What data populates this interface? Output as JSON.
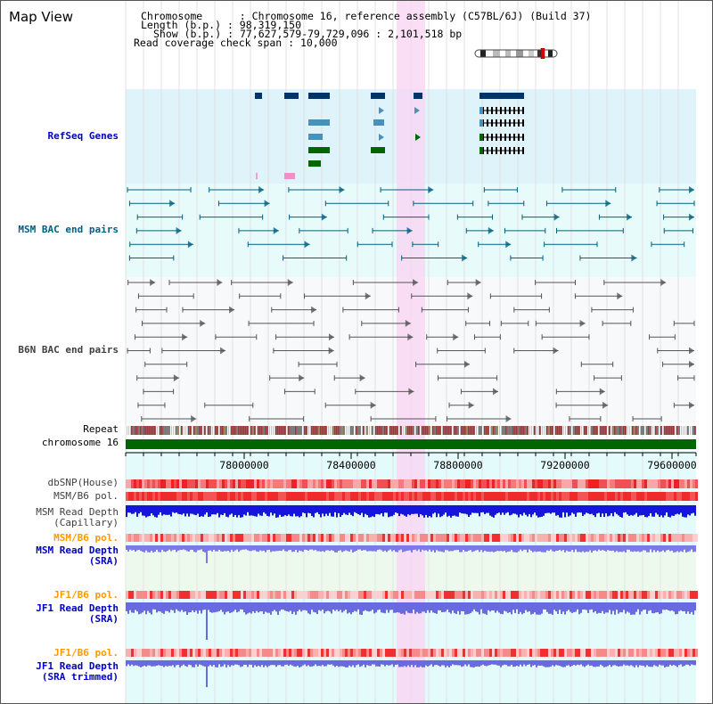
{
  "title": "Map View",
  "header": {
    "line1_label": "Chromosome",
    "line1_value": "Chromosome 16, reference assembly (C57BL/6J) (Build 37)",
    "line2_label": "Length (b.p.)",
    "line2_value": "98,319,150",
    "line3_label": "Show (b.p.)",
    "line3_value": "77,627,579-79,729,096 : 2,101,518 bp",
    "line4_label": "Read coverage check span",
    "line4_value": "10,000"
  },
  "tracks": {
    "refseq": "RefSeq Genes",
    "msm_bac": "MSM BAC end pairs",
    "b6n_bac": "B6N BAC end pairs",
    "repeat": "Repeat",
    "chromosome": "chromosome 16",
    "dbsnp": "dbSNP(House)",
    "msm_b6_pol": "MSM/B6 pol.",
    "msm_depth_cap_1": "MSM Read Depth",
    "msm_depth_cap_2": "(Capillary)",
    "msm_b6_pol_sra": "MSM/B6 pol.",
    "msm_depth_sra_1": "MSM Read Depth",
    "msm_depth_sra_2": "(SRA)",
    "jf1_b6_pol": "JF1/B6 pol.",
    "jf1_depth_1": "JF1 Read Depth",
    "jf1_depth_2": "(SRA)",
    "jf1_b6_pol_trim": "JF1/B6 pol.",
    "jf1_depth_trim_1": "JF1 Read Depth",
    "jf1_depth_trim_2": "(SRA trimmed)"
  },
  "axis_ticks": [
    "78000000",
    "78400000",
    "78800000",
    "79200000",
    "79600000"
  ],
  "colors": {
    "refseq_bg": "#dff3fb",
    "msm_bg": "#e8fbfb",
    "b6n_bg": "#f7f9fb",
    "highlight": "#f8d6f4",
    "msm_label": "#006080",
    "refseq_label": "#0000c0",
    "b6n_label": "#404040",
    "pol_label": "#ff9900",
    "depth_label": "#0000c0",
    "chromosome_bar": "#006600"
  }
}
